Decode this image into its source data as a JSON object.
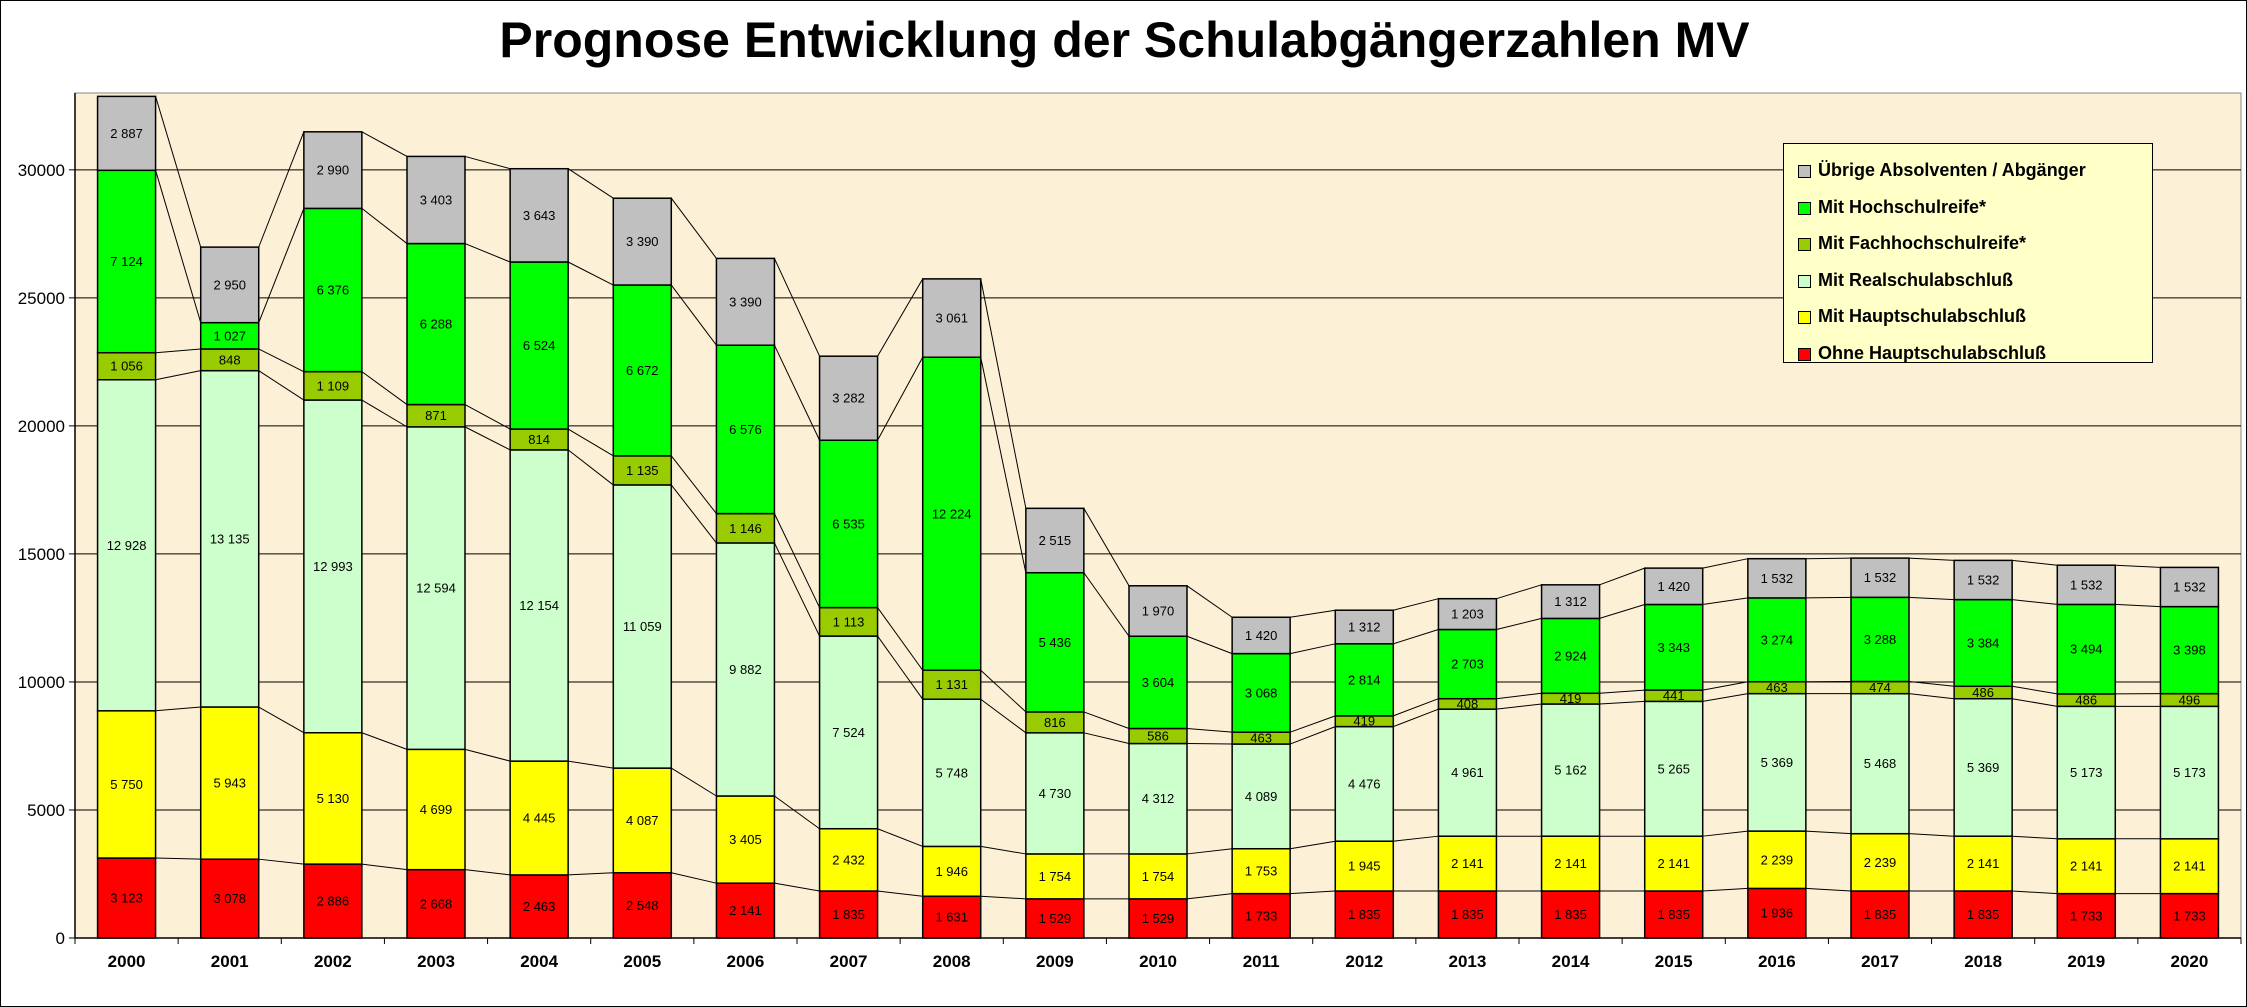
{
  "chart_data": {
    "type": "bar",
    "stacked": true,
    "title": "Prognose Entwicklung der Schulabgängerzahlen MV",
    "xlabel": "",
    "ylabel": "",
    "ylim": [
      0,
      33000
    ],
    "yticks": [
      0,
      5000,
      10000,
      15000,
      20000,
      25000,
      30000
    ],
    "grid": true,
    "legend_position": "top-right",
    "categories": [
      "2000",
      "2001",
      "2002",
      "2003",
      "2004",
      "2005",
      "2006",
      "2007",
      "2008",
      "2009",
      "2010",
      "2011",
      "2012",
      "2013",
      "2014",
      "2015",
      "2016",
      "2017",
      "2018",
      "2019",
      "2020"
    ],
    "series": [
      {
        "name": "Ohne Hauptschulabschluß",
        "color": "#ff0000",
        "values": [
          3123,
          3078,
          2886,
          2668,
          2463,
          2548,
          2141,
          1835,
          1631,
          1529,
          1529,
          1733,
          1835,
          1835,
          1835,
          1835,
          1936,
          1835,
          1835,
          1733,
          1733
        ],
        "labels": [
          "3 123",
          "3 078",
          "2 886",
          "2 668",
          "2 463",
          "2 548",
          "2 141",
          "1 835",
          "1 631",
          "1 529",
          "1 529",
          "1 733",
          "1 835",
          "1 835",
          "1 835",
          "1 835",
          "1 936",
          "1 835",
          "1 835",
          "1 733",
          "1 733"
        ]
      },
      {
        "name": "Mit Hauptschulabschluß",
        "color": "#ffff00",
        "values": [
          5750,
          5943,
          5130,
          4699,
          4445,
          4087,
          3405,
          2432,
          1946,
          1754,
          1754,
          1753,
          1945,
          2141,
          2141,
          2141,
          2239,
          2239,
          2141,
          2141,
          2141
        ],
        "labels": [
          "5 750",
          "5 943",
          "5 130",
          "4 699",
          "4 445",
          "4 087",
          "3 405",
          "2 432",
          "1 946",
          "1 754",
          "1 754",
          "1 753",
          "1 945",
          "2 141",
          "2 141",
          "2 141",
          "2 239",
          "2 239",
          "2 141",
          "2 141",
          "2 141"
        ]
      },
      {
        "name": "Mit Realschulabschluß",
        "color": "#ccffcc",
        "values": [
          12928,
          13135,
          12993,
          12594,
          12154,
          11059,
          9882,
          7524,
          5748,
          4730,
          4312,
          4089,
          4476,
          4961,
          5162,
          5265,
          5369,
          5468,
          5369,
          5173,
          5173
        ],
        "labels": [
          "12 928",
          "13 135",
          "12 993",
          "12 594",
          "12 154",
          "11 059",
          "9 882",
          "7 524",
          "5 748",
          "4 730",
          "4 312",
          "4 089",
          "4 476",
          "4 961",
          "5 162",
          "5 265",
          "5 369",
          "5 468",
          "5 369",
          "5 173",
          "5 173"
        ]
      },
      {
        "name": "Mit Fachhochschulreife*",
        "color": "#99cc00",
        "values": [
          1056,
          848,
          1109,
          871,
          814,
          1135,
          1146,
          1113,
          1131,
          816,
          586,
          463,
          419,
          408,
          419,
          441,
          463,
          474,
          486,
          486,
          496
        ],
        "labels": [
          "1 056",
          "848",
          "1 109",
          "871",
          "814",
          "1 135",
          "1 146",
          "1 113",
          "1 131",
          "816",
          "586",
          "463",
          "419",
          "408",
          "419",
          "441",
          "463",
          "474",
          "486",
          "486",
          "496"
        ]
      },
      {
        "name": "Mit Hochschulreife*",
        "color": "#00ff00",
        "values": [
          7124,
          1027,
          6376,
          6288,
          6524,
          6672,
          6576,
          6535,
          12224,
          5436,
          3604,
          3068,
          2814,
          2703,
          2924,
          3343,
          3274,
          3288,
          3384,
          3494,
          3398
        ],
        "labels": [
          "7 124",
          "1 027",
          "6 376",
          "6 288",
          "6 524",
          "6 672",
          "6 576",
          "6 535",
          "12 224",
          "5 436",
          "3 604",
          "3 068",
          "2 814",
          "2 703",
          "2 924",
          "3 343",
          "3 274",
          "3 288",
          "3 384",
          "3 494",
          "3 398"
        ]
      },
      {
        "name": "Übrige Absolventen / Abgänger",
        "color": "#c0c0c0",
        "values": [
          2887,
          2950,
          2990,
          3403,
          3643,
          3390,
          3390,
          3282,
          3061,
          2515,
          1970,
          1420,
          1312,
          1203,
          1312,
          1420,
          1532,
          1532,
          1532,
          1532,
          1532
        ],
        "labels": [
          "2 887",
          "2 950",
          "2 990",
          "3 403",
          "3 643",
          "3 390",
          "3 390",
          "3 282",
          "3 061",
          "2 515",
          "1 970",
          "1 420",
          "1 312",
          "1 203",
          "1 312",
          "1 420",
          "1 532",
          "1 532",
          "1 532",
          "1 532",
          "1 532"
        ]
      }
    ],
    "ytick_labels": [
      "0",
      "5000",
      "10000",
      "15000",
      "20000",
      "25000",
      "30000"
    ],
    "legend": [
      {
        "label": "Übrige Absolventen / Abgänger",
        "color": "#c0c0c0"
      },
      {
        "label": "Mit Hochschulreife*",
        "color": "#00ff00"
      },
      {
        "label": "Mit Fachhochschulreife*",
        "color": "#99cc00"
      },
      {
        "label": "Mit Realschulabschluß",
        "color": "#ccffcc"
      },
      {
        "label": "Mit Hauptschulabschluß",
        "color": "#ffff00"
      },
      {
        "label": "Ohne Hauptschulabschluß",
        "color": "#ff0000"
      }
    ],
    "plot_background": "#fcf0d6"
  }
}
